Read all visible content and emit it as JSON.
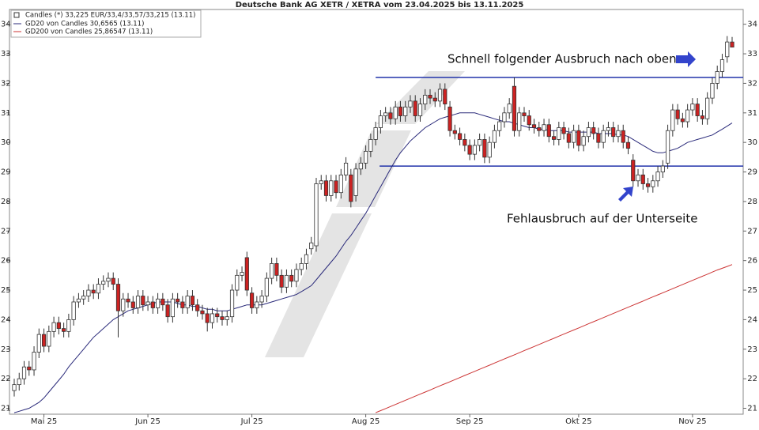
{
  "chart_data": {
    "type": "candlestick",
    "title": "Deutsche Bank AG XETR / XETRA vom 23.04.2025 bis 13.11.2025",
    "candle_name": "Candles (*) 33,225 EUR/33,4/33,57/33,215 (13.11)",
    "up_color": "#ffffff",
    "down_color": "#cc2222",
    "categories": [
      null,
      null,
      null,
      null,
      null,
      null,
      "Mai 25",
      null,
      null,
      null,
      null,
      null,
      null,
      null,
      null,
      null,
      null,
      null,
      null,
      null,
      null,
      null,
      null,
      null,
      null,
      null,
      null,
      "Jun 25",
      null,
      null,
      null,
      null,
      null,
      null,
      null,
      null,
      null,
      null,
      null,
      null,
      null,
      null,
      null,
      null,
      null,
      null,
      null,
      null,
      "Jul 25",
      null,
      null,
      null,
      null,
      null,
      null,
      null,
      null,
      null,
      null,
      null,
      null,
      null,
      null,
      null,
      null,
      null,
      null,
      null,
      null,
      null,
      null,
      "Aug 25",
      null,
      null,
      null,
      null,
      null,
      null,
      null,
      null,
      null,
      null,
      null,
      null,
      null,
      null,
      null,
      null,
      null,
      null,
      null,
      null,
      "Sep 25",
      null,
      null,
      null,
      null,
      null,
      null,
      null,
      null,
      null,
      null,
      null,
      null,
      null,
      null,
      null,
      null,
      null,
      null,
      null,
      null,
      null,
      "Okt 25",
      null,
      null,
      null,
      null,
      null,
      null,
      null,
      null,
      null,
      null,
      null,
      null,
      null,
      null,
      null,
      null,
      null,
      null,
      null,
      null,
      null,
      null,
      "Nov 25",
      null,
      null,
      null,
      null,
      null,
      null,
      null,
      null
    ],
    "open": [
      21.6,
      21.8,
      22.0,
      22.4,
      22.3,
      22.9,
      23.5,
      23.1,
      23.6,
      23.9,
      23.7,
      23.6,
      24.0,
      24.6,
      24.7,
      24.8,
      25.0,
      24.9,
      25.2,
      25.3,
      25.4,
      25.2,
      24.3,
      24.7,
      24.6,
      24.4,
      24.8,
      24.5,
      24.6,
      24.4,
      24.7,
      24.5,
      24.1,
      24.7,
      24.6,
      24.4,
      24.8,
      24.5,
      24.3,
      24.2,
      23.9,
      24.2,
      24.1,
      24.0,
      24.1,
      25.0,
      25.5,
      26.1,
      24.9,
      24.4,
      24.6,
      24.8,
      25.4,
      25.9,
      25.5,
      25.1,
      25.5,
      25.3,
      25.7,
      25.9,
      26.4,
      26.5,
      28.6,
      28.7,
      28.2,
      28.7,
      28.3,
      28.9,
      28.9,
      28.2,
      29.1,
      29.3,
      29.7,
      30.1,
      30.5,
      30.9,
      31.0,
      30.8,
      31.2,
      30.9,
      31.2,
      31.4,
      30.9,
      31.3,
      31.6,
      31.5,
      31.4,
      31.8,
      31.2,
      30.4,
      30.3,
      30.1,
      29.9,
      29.6,
      29.9,
      30.1,
      29.5,
      30.0,
      30.4,
      30.7,
      31.0,
      31.9,
      30.4,
      31.0,
      30.9,
      30.6,
      30.5,
      30.4,
      30.6,
      30.2,
      30.1,
      30.5,
      30.3,
      30.0,
      30.4,
      29.9,
      30.2,
      30.5,
      30.3,
      30.0,
      30.4,
      30.5,
      30.2,
      30.4,
      30.0,
      29.4,
      28.7,
      28.9,
      28.6,
      28.5,
      28.7,
      29.0,
      29.3,
      30.4,
      31.1,
      30.8,
      30.7,
      31.1,
      31.3,
      30.9,
      30.8,
      31.5,
      32.0,
      32.4,
      32.9,
      33.4
    ],
    "high": [
      22.0,
      22.2,
      22.6,
      22.6,
      23.1,
      23.7,
      23.7,
      23.8,
      24.1,
      24.1,
      23.9,
      24.2,
      24.8,
      24.9,
      25.0,
      25.2,
      25.2,
      25.4,
      25.5,
      25.6,
      25.6,
      25.4,
      24.9,
      24.9,
      24.8,
      25.0,
      25.0,
      24.8,
      24.8,
      24.9,
      24.9,
      24.7,
      24.9,
      24.9,
      24.8,
      25.0,
      25.0,
      24.7,
      24.5,
      24.4,
      24.4,
      24.4,
      24.3,
      24.3,
      25.2,
      25.7,
      25.8,
      26.3,
      25.1,
      24.8,
      25.0,
      25.6,
      26.1,
      26.1,
      25.7,
      25.7,
      25.7,
      25.9,
      26.1,
      26.4,
      26.8,
      28.8,
      28.9,
      28.9,
      28.9,
      28.9,
      29.1,
      29.5,
      29.1,
      29.3,
      29.5,
      29.9,
      30.3,
      30.7,
      31.1,
      31.2,
      31.2,
      31.4,
      31.4,
      31.4,
      31.6,
      31.6,
      31.5,
      31.8,
      31.8,
      31.7,
      32.0,
      32.0,
      31.4,
      30.6,
      30.5,
      30.3,
      30.1,
      30.1,
      30.3,
      30.3,
      30.2,
      30.6,
      30.9,
      31.2,
      31.5,
      32.2,
      31.2,
      31.2,
      31.1,
      30.8,
      30.7,
      30.8,
      30.8,
      30.4,
      30.7,
      30.7,
      30.5,
      30.6,
      30.6,
      30.4,
      30.7,
      30.7,
      30.5,
      30.6,
      30.7,
      30.7,
      30.6,
      30.6,
      30.2,
      29.6,
      29.1,
      29.1,
      28.8,
      28.9,
      29.2,
      29.4,
      30.6,
      31.3,
      31.3,
      31.0,
      31.3,
      31.5,
      31.5,
      31.1,
      31.7,
      32.2,
      32.6,
      33.0,
      33.6,
      33.57
    ],
    "low": [
      21.4,
      21.6,
      21.8,
      22.1,
      22.1,
      22.7,
      22.9,
      22.9,
      23.4,
      23.5,
      23.4,
      23.4,
      23.8,
      24.4,
      24.5,
      24.6,
      24.7,
      24.7,
      25.0,
      25.1,
      25.0,
      23.4,
      24.1,
      24.4,
      24.2,
      24.2,
      24.3,
      24.3,
      24.2,
      24.2,
      24.3,
      23.9,
      23.9,
      24.4,
      24.2,
      24.2,
      24.3,
      24.1,
      24.0,
      23.6,
      23.7,
      23.9,
      23.8,
      23.8,
      23.9,
      24.8,
      25.3,
      24.8,
      24.2,
      24.2,
      24.4,
      24.6,
      25.2,
      25.3,
      24.9,
      24.9,
      25.1,
      25.1,
      25.5,
      25.7,
      26.2,
      26.3,
      28.4,
      28.0,
      28.0,
      28.1,
      28.1,
      28.7,
      27.8,
      28.0,
      28.9,
      29.1,
      29.5,
      29.9,
      30.3,
      30.7,
      30.6,
      30.6,
      30.7,
      30.7,
      31.0,
      30.7,
      30.7,
      31.1,
      31.3,
      31.2,
      31.2,
      31.1,
      30.2,
      30.1,
      29.9,
      29.7,
      29.4,
      29.4,
      29.7,
      29.3,
      29.3,
      29.8,
      30.2,
      30.5,
      30.8,
      30.2,
      30.2,
      30.7,
      30.4,
      30.3,
      30.2,
      30.2,
      30.0,
      29.9,
      29.9,
      30.1,
      29.8,
      29.8,
      29.7,
      29.7,
      30.0,
      30.1,
      29.8,
      29.8,
      30.2,
      30.0,
      30.0,
      29.8,
      29.6,
      28.5,
      28.5,
      28.4,
      28.3,
      28.3,
      28.5,
      28.8,
      29.1,
      30.2,
      30.6,
      30.5,
      30.5,
      30.9,
      30.7,
      30.6,
      30.6,
      31.3,
      31.8,
      32.2,
      32.7,
      33.215
    ],
    "close": [
      21.8,
      22.0,
      22.4,
      22.3,
      22.9,
      23.5,
      23.1,
      23.6,
      23.9,
      23.7,
      23.6,
      24.0,
      24.6,
      24.7,
      24.8,
      25.0,
      24.9,
      25.2,
      25.3,
      25.4,
      25.2,
      24.3,
      24.7,
      24.6,
      24.4,
      24.8,
      24.5,
      24.6,
      24.4,
      24.7,
      24.5,
      24.1,
      24.7,
      24.6,
      24.4,
      24.8,
      24.5,
      24.3,
      24.2,
      23.9,
      24.2,
      24.1,
      24.0,
      24.1,
      25.0,
      25.5,
      25.6,
      25.0,
      24.4,
      24.6,
      24.8,
      25.4,
      25.9,
      25.5,
      25.1,
      25.5,
      25.3,
      25.7,
      25.9,
      26.2,
      26.6,
      28.6,
      28.7,
      28.2,
      28.7,
      28.3,
      28.9,
      29.3,
      28.0,
      29.1,
      29.3,
      29.7,
      30.1,
      30.5,
      30.9,
      31.0,
      30.8,
      31.2,
      30.9,
      31.2,
      31.4,
      30.9,
      31.3,
      31.6,
      31.5,
      31.4,
      31.8,
      31.3,
      30.4,
      30.3,
      30.1,
      29.9,
      29.6,
      29.9,
      30.1,
      29.5,
      30.0,
      30.4,
      30.7,
      31.0,
      31.3,
      30.4,
      31.0,
      30.9,
      30.6,
      30.5,
      30.4,
      30.6,
      30.2,
      30.1,
      30.5,
      30.3,
      30.0,
      30.4,
      29.9,
      30.2,
      30.5,
      30.3,
      30.0,
      30.4,
      30.5,
      30.2,
      30.4,
      30.0,
      29.8,
      28.7,
      28.9,
      28.6,
      28.5,
      28.7,
      29.0,
      29.2,
      30.4,
      31.1,
      30.8,
      30.7,
      31.1,
      31.3,
      30.9,
      30.8,
      31.5,
      32.0,
      32.4,
      32.8,
      33.4,
      33.225
    ],
    "series": [
      {
        "name": "GD20 von Candles 30,6565 (13.11)",
        "color": "#2a2a7a",
        "values": [
          20.85,
          20.9,
          20.95,
          21.0,
          21.1,
          21.2,
          21.35,
          21.55,
          21.75,
          21.95,
          22.15,
          22.4,
          22.6,
          22.8,
          23.0,
          23.2,
          23.4,
          23.55,
          23.7,
          23.85,
          24.0,
          24.1,
          24.2,
          24.3,
          24.35,
          24.4,
          24.45,
          24.5,
          24.55,
          24.6,
          24.6,
          24.6,
          24.6,
          24.55,
          24.5,
          24.5,
          24.45,
          24.45,
          24.4,
          24.35,
          24.35,
          24.3,
          24.3,
          24.3,
          24.35,
          24.4,
          24.45,
          24.5,
          24.5,
          24.5,
          24.5,
          24.55,
          24.6,
          24.65,
          24.7,
          24.75,
          24.8,
          24.85,
          24.95,
          25.05,
          25.15,
          25.35,
          25.55,
          25.75,
          25.95,
          26.15,
          26.4,
          26.65,
          26.85,
          27.1,
          27.35,
          27.6,
          27.9,
          28.2,
          28.5,
          28.8,
          29.1,
          29.4,
          29.65,
          29.85,
          30.05,
          30.2,
          30.35,
          30.5,
          30.6,
          30.7,
          30.8,
          30.85,
          30.9,
          30.95,
          31.0,
          31.0,
          31.0,
          31.0,
          30.95,
          30.9,
          30.85,
          30.8,
          30.75,
          30.7,
          30.7,
          30.65,
          30.6,
          30.55,
          30.5,
          30.5,
          30.45,
          30.45,
          30.4,
          30.4,
          30.4,
          30.4,
          30.35,
          30.35,
          30.35,
          30.35,
          30.35,
          30.35,
          30.3,
          30.3,
          30.3,
          30.3,
          30.25,
          30.25,
          30.2,
          30.1,
          30.0,
          29.9,
          29.8,
          29.7,
          29.65,
          29.65,
          29.7,
          29.75,
          29.8,
          29.9,
          30.0,
          30.05,
          30.1,
          30.15,
          30.2,
          30.25,
          30.35,
          30.45,
          30.55,
          30.6565
        ]
      },
      {
        "name": "GD200 von Candles 25,86547 (13.11)",
        "color": "#cc3333",
        "values": [
          null,
          null,
          null,
          null,
          null,
          null,
          null,
          null,
          null,
          null,
          null,
          null,
          null,
          null,
          null,
          null,
          null,
          null,
          null,
          null,
          null,
          null,
          null,
          null,
          null,
          null,
          null,
          null,
          null,
          null,
          null,
          null,
          null,
          null,
          null,
          null,
          null,
          null,
          null,
          null,
          null,
          null,
          null,
          null,
          null,
          null,
          null,
          null,
          null,
          null,
          null,
          null,
          null,
          null,
          null,
          null,
          null,
          null,
          null,
          null,
          null,
          null,
          null,
          null,
          null,
          null,
          null,
          null,
          null,
          null,
          null,
          null,
          null,
          20.85,
          20.92,
          20.99,
          21.06,
          21.13,
          21.2,
          21.27,
          21.34,
          21.41,
          21.48,
          21.55,
          21.62,
          21.69,
          21.76,
          21.83,
          21.9,
          21.97,
          22.04,
          22.11,
          22.18,
          22.25,
          22.32,
          22.39,
          22.46,
          22.53,
          22.6,
          22.67,
          22.74,
          22.81,
          22.88,
          22.95,
          23.02,
          23.09,
          23.16,
          23.23,
          23.3,
          23.37,
          23.44,
          23.51,
          23.58,
          23.65,
          23.72,
          23.79,
          23.86,
          23.93,
          24.0,
          24.07,
          24.14,
          24.21,
          24.28,
          24.35,
          24.42,
          24.49,
          24.56,
          24.63,
          24.7,
          24.77,
          24.84,
          24.91,
          24.98,
          25.05,
          25.12,
          25.19,
          25.26,
          25.33,
          25.4,
          25.47,
          25.54,
          25.61,
          25.68,
          25.74,
          25.8,
          25.86547
        ]
      }
    ],
    "levels": [
      32.2,
      29.2
    ],
    "level_color": "#2233aa",
    "annotations": [
      "Schnell folgender Ausbruch nach oben",
      "Fehlausbruch auf der Unterseite"
    ],
    "ylim": [
      20.8,
      34.5
    ],
    "yticks": [
      21,
      22,
      23,
      24,
      25,
      26,
      27,
      28,
      29,
      30,
      31,
      32,
      33,
      34
    ]
  }
}
